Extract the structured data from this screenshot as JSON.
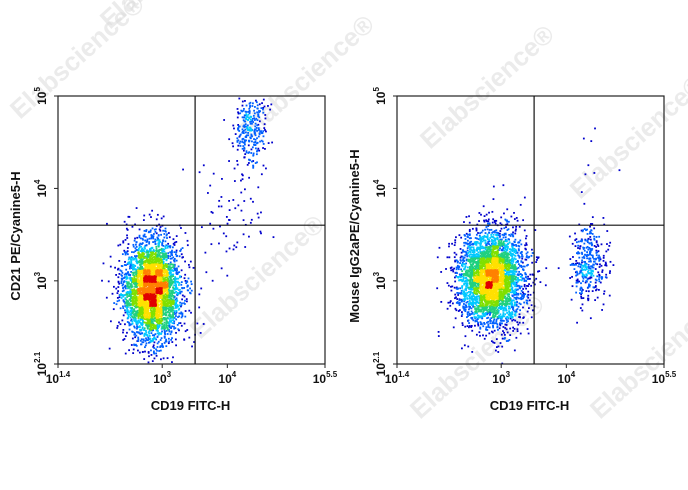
{
  "watermark": "Elabscience",
  "watermark_mark": "®",
  "chart_data": [
    {
      "type": "scatter",
      "plot_style": "flow cytometry density dot plot",
      "xlabel": "CD19 FITC-H",
      "ylabel": "CD21 PE/Cyanine5-H",
      "x_scale": "log10",
      "y_scale": "log10",
      "xlim": [
        25.1,
        316228
      ],
      "ylim": [
        125.9,
        100000
      ],
      "x_ticks": [
        {
          "base": "10",
          "exp": "1.4",
          "value": 25.1
        },
        {
          "base": "10",
          "exp": "3",
          "value": 1000
        },
        {
          "base": "10",
          "exp": "4",
          "value": 10000
        },
        {
          "base": "10",
          "exp": "5.5",
          "value": 316228
        }
      ],
      "y_ticks": [
        {
          "base": "10",
          "exp": "2.1",
          "value": 125.9
        },
        {
          "base": "10",
          "exp": "3",
          "value": 1000
        },
        {
          "base": "10",
          "exp": "4",
          "value": 10000
        },
        {
          "base": "10",
          "exp": "5",
          "value": 100000
        }
      ],
      "quadrant_gate": {
        "x": 3200,
        "y": 4000
      },
      "density_colors": [
        "#0000cc",
        "#0060ff",
        "#00c8ff",
        "#20d080",
        "#80e000",
        "#ffe000",
        "#ff8000",
        "#e00000"
      ],
      "populations": [
        {
          "x_center": 700,
          "y_center": 800,
          "x_spread_log": 0.22,
          "y_spread_log": 0.27,
          "count": 3600
        },
        {
          "x_center": 22000,
          "y_center": 45000,
          "x_spread_log": 0.13,
          "y_spread_log": 0.2,
          "count": 280
        },
        {
          "x_center": 11000,
          "y_center": 6000,
          "x_spread_log": 0.25,
          "y_spread_log": 0.3,
          "count": 70
        }
      ]
    },
    {
      "type": "scatter",
      "plot_style": "flow cytometry density dot plot",
      "xlabel": "CD19 FITC-H",
      "ylabel": "Mouse IgG2aPE/Cyanine5-H",
      "x_scale": "log10",
      "y_scale": "log10",
      "xlim": [
        25.1,
        316228
      ],
      "ylim": [
        125.9,
        100000
      ],
      "x_ticks": [
        {
          "base": "10",
          "exp": "1.4",
          "value": 25.1
        },
        {
          "base": "10",
          "exp": "3",
          "value": 1000
        },
        {
          "base": "10",
          "exp": "4",
          "value": 10000
        },
        {
          "base": "10",
          "exp": "5.5",
          "value": 316228
        }
      ],
      "y_ticks": [
        {
          "base": "10",
          "exp": "2.1",
          "value": 125.9
        },
        {
          "base": "10",
          "exp": "3",
          "value": 1000
        },
        {
          "base": "10",
          "exp": "4",
          "value": 10000
        },
        {
          "base": "10",
          "exp": "5",
          "value": 100000
        }
      ],
      "quadrant_gate": {
        "x": 3200,
        "y": 4000
      },
      "density_colors": [
        "#0000cc",
        "#0060ff",
        "#00c8ff",
        "#20d080",
        "#80e000",
        "#ffe000",
        "#ff8000",
        "#e00000"
      ],
      "populations": [
        {
          "x_center": 700,
          "y_center": 1050,
          "x_spread_log": 0.25,
          "y_spread_log": 0.25,
          "count": 3600
        },
        {
          "x_center": 22000,
          "y_center": 1500,
          "x_spread_log": 0.14,
          "y_spread_log": 0.22,
          "count": 350
        },
        {
          "x_center": 25000,
          "y_center": 20000,
          "x_spread_log": 0.2,
          "y_spread_log": 0.25,
          "count": 8
        }
      ]
    }
  ]
}
